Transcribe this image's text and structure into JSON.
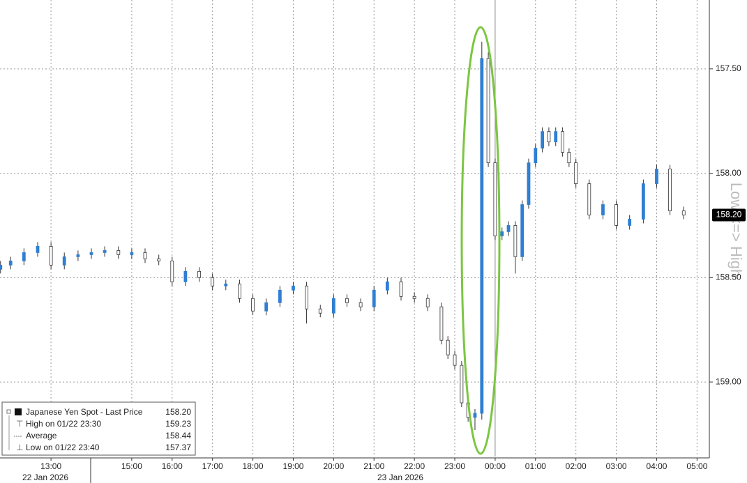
{
  "chart_data": {
    "type": "candlestick",
    "x": [
      11.75,
      12,
      12.33,
      12.67,
      13,
      13.33,
      13.67,
      14,
      14.33,
      14.67,
      15,
      15.33,
      15.67,
      16,
      16.33,
      16.67,
      17,
      17.33,
      17.67,
      18,
      18.33,
      18.67,
      19,
      19.33,
      19.67,
      20,
      20.33,
      20.67,
      21,
      21.33,
      21.67,
      22,
      22.33,
      22.67,
      22.83,
      23,
      23.17,
      23.33,
      23.5,
      23.67,
      23.83,
      24,
      24.17,
      24.33,
      24.5,
      24.67,
      24.83,
      25,
      25.17,
      25.33,
      25.5,
      25.67,
      25.83,
      26,
      26.33,
      26.67,
      27,
      27.33,
      27.67,
      28,
      28.33,
      28.67
    ],
    "open": [
      158.46,
      158.44,
      158.42,
      158.38,
      158.35,
      158.44,
      158.4,
      158.39,
      158.38,
      158.37,
      158.39,
      158.38,
      158.41,
      158.42,
      158.52,
      158.47,
      158.5,
      158.54,
      158.53,
      158.6,
      158.66,
      158.62,
      158.56,
      158.54,
      158.65,
      158.67,
      158.6,
      158.62,
      158.64,
      158.56,
      158.52,
      158.59,
      158.6,
      158.64,
      158.8,
      158.87,
      158.92,
      159.1,
      159.17,
      159.15,
      157.45,
      157.95,
      158.3,
      158.28,
      158.25,
      158.4,
      158.15,
      157.95,
      157.88,
      157.8,
      157.85,
      157.8,
      157.9,
      157.95,
      158.05,
      158.2,
      158.15,
      158.25,
      158.22,
      158.05,
      157.98,
      158.18
    ],
    "high": [
      158.48,
      158.46,
      158.44,
      158.4,
      158.46,
      158.46,
      158.42,
      158.41,
      158.4,
      158.41,
      158.41,
      158.43,
      158.44,
      158.54,
      158.54,
      158.52,
      158.56,
      158.56,
      158.62,
      158.68,
      158.68,
      158.64,
      158.58,
      158.72,
      158.69,
      158.69,
      158.64,
      158.66,
      158.66,
      158.58,
      158.61,
      158.62,
      158.66,
      158.82,
      158.89,
      158.94,
      159.12,
      159.19,
      159.23,
      159.18,
      157.97,
      158.32,
      158.32,
      158.3,
      158.48,
      158.42,
      158.17,
      157.97,
      157.9,
      157.87,
      157.87,
      157.92,
      157.97,
      158.07,
      158.22,
      158.22,
      158.27,
      158.27,
      158.24,
      158.07,
      158.2,
      158.22
    ],
    "low": [
      158.42,
      158.4,
      158.36,
      158.33,
      158.33,
      158.38,
      158.37,
      158.36,
      158.35,
      158.35,
      158.36,
      158.36,
      158.39,
      158.4,
      158.45,
      158.45,
      158.48,
      158.51,
      158.51,
      158.58,
      158.6,
      158.54,
      158.52,
      158.52,
      158.63,
      158.58,
      158.58,
      158.6,
      158.54,
      158.5,
      158.5,
      158.57,
      158.58,
      158.62,
      158.78,
      158.85,
      158.9,
      159.08,
      159.13,
      157.37,
      157.42,
      157.93,
      158.26,
      158.23,
      158.23,
      158.13,
      157.93,
      157.86,
      157.78,
      157.78,
      157.78,
      157.78,
      157.88,
      157.93,
      158.03,
      158.13,
      158.13,
      158.2,
      158.03,
      157.96,
      157.96,
      158.16
    ],
    "close": [
      158.44,
      158.42,
      158.38,
      158.35,
      158.44,
      158.4,
      158.39,
      158.38,
      158.37,
      158.39,
      158.38,
      158.41,
      158.42,
      158.52,
      158.47,
      158.5,
      158.54,
      158.53,
      158.6,
      158.66,
      158.62,
      158.56,
      158.54,
      158.65,
      158.67,
      158.6,
      158.62,
      158.64,
      158.56,
      158.52,
      158.59,
      158.6,
      158.64,
      158.8,
      158.87,
      158.92,
      159.1,
      159.17,
      159.15,
      157.45,
      157.95,
      158.3,
      158.28,
      158.25,
      158.4,
      158.15,
      157.95,
      157.88,
      157.8,
      157.85,
      157.8,
      157.9,
      157.95,
      158.05,
      158.2,
      158.15,
      158.25,
      158.22,
      158.05,
      157.98,
      158.18,
      158.2
    ],
    "up_color": "#ffffff",
    "down_color": "#2f7fd3",
    "outline_color": "#333333",
    "xlim": [
      11.737,
      29.27
    ],
    "xticks": [
      {
        "value": 13,
        "label": "13:00"
      },
      {
        "value": 15,
        "label": "15:00"
      },
      {
        "value": 16,
        "label": "16:00"
      },
      {
        "value": 17,
        "label": "17:00"
      },
      {
        "value": 18,
        "label": "18:00"
      },
      {
        "value": 19,
        "label": "19:00"
      },
      {
        "value": 20,
        "label": "20:00"
      },
      {
        "value": 21,
        "label": "21:00"
      },
      {
        "value": 22,
        "label": "22:00"
      },
      {
        "value": 23,
        "label": "23:00"
      },
      {
        "value": 24,
        "label": "00:00"
      },
      {
        "value": 25,
        "label": "01:00"
      },
      {
        "value": 26,
        "label": "02:00"
      },
      {
        "value": 27,
        "label": "03:00"
      },
      {
        "value": 28,
        "label": "04:00"
      },
      {
        "value": 29,
        "label": "05:00"
      }
    ],
    "x_dates": [
      "22 Jan 2026",
      "23 Jan 2026"
    ],
    "ylim": [
      157.17,
      159.357
    ],
    "y_inverted": true,
    "yticks": [
      {
        "value": 157.5,
        "label": "157.50"
      },
      {
        "value": 158,
        "label": "158.00"
      },
      {
        "value": 158.5,
        "label": "158.50"
      },
      {
        "value": 159,
        "label": "159.00"
      }
    ],
    "grid": true,
    "last_price": {
      "value": 158.2,
      "label": "158.20"
    },
    "axis_note": "Low <=> High",
    "legend": [
      {
        "label": "Japanese Yen Spot - Last Price",
        "value": "158.20"
      },
      {
        "label": "High on 01/22 23:30",
        "value": "159.23"
      },
      {
        "label": "Average",
        "value": "158.44"
      },
      {
        "label": "Low on 01/22 23:40",
        "value": "157.37"
      }
    ]
  }
}
